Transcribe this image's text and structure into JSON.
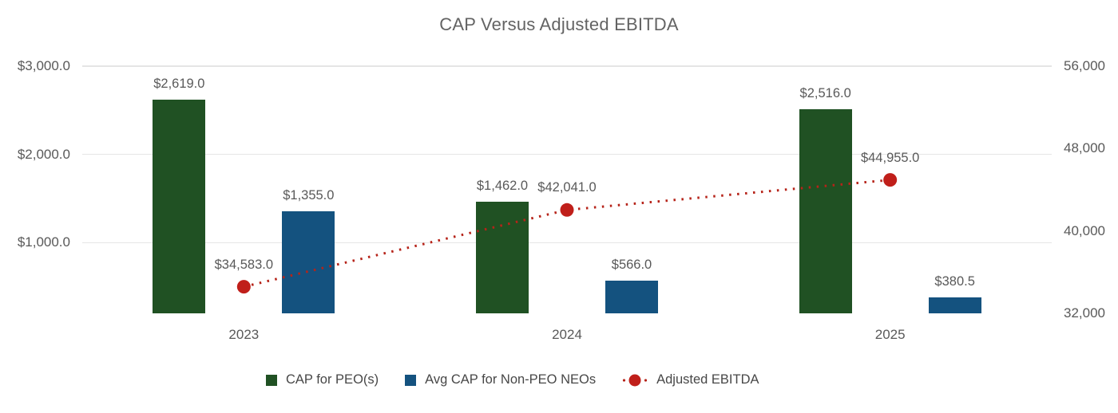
{
  "chart_data": {
    "type": "bar",
    "subtype": "combo-bar-line-dual-axis",
    "title": "CAP Versus Adjusted EBITDA",
    "categories": [
      "2023",
      "2024",
      "2025"
    ],
    "series": [
      {
        "name": "CAP for PEO(s)",
        "kind": "bar",
        "axis": "left",
        "color": "#205123",
        "values": [
          2619,
          1462,
          2516
        ],
        "data_labels": [
          "$2,619.0",
          "$1,462.0",
          "$2,516.0"
        ]
      },
      {
        "name": "Avg CAP for Non-PEO NEOs",
        "kind": "bar",
        "axis": "left",
        "color": "#14527f",
        "values": [
          1355,
          566,
          380.5
        ],
        "data_labels": [
          "$1,355.0",
          "$566.0",
          "$380.5"
        ]
      },
      {
        "name": "Adjusted EBITDA",
        "kind": "dotted-line",
        "axis": "right",
        "color": "#c01f1a",
        "dot_color": "#b62319",
        "values": [
          34583,
          42041,
          44955
        ],
        "data_labels": [
          "$34,583.0",
          "$42,041.0",
          "$44,955.0"
        ]
      }
    ],
    "left_axis": {
      "tick_labels": [
        "$3,000.0",
        "$2,000.0",
        "$1,000.0"
      ],
      "tick_values": [
        3000,
        2000,
        1000
      ],
      "min": 200,
      "max": 3000
    },
    "right_axis": {
      "tick_labels": [
        "56,000",
        "48,000",
        "40,000",
        "32,000"
      ],
      "tick_values": [
        56000,
        48000,
        40000,
        32000
      ],
      "min": 32000,
      "max": 56000
    },
    "legend": {
      "position": "bottom",
      "entries": [
        "CAP for PEO(s)",
        "Avg CAP for Non-PEO NEOs",
        "Adjusted EBITDA"
      ]
    },
    "grid": "horizontal",
    "colors": {
      "grid": "#e5e5e5",
      "axis_text": "#595959",
      "title_text": "#636363",
      "legend_text": "#474747",
      "background": "#ffffff"
    }
  }
}
